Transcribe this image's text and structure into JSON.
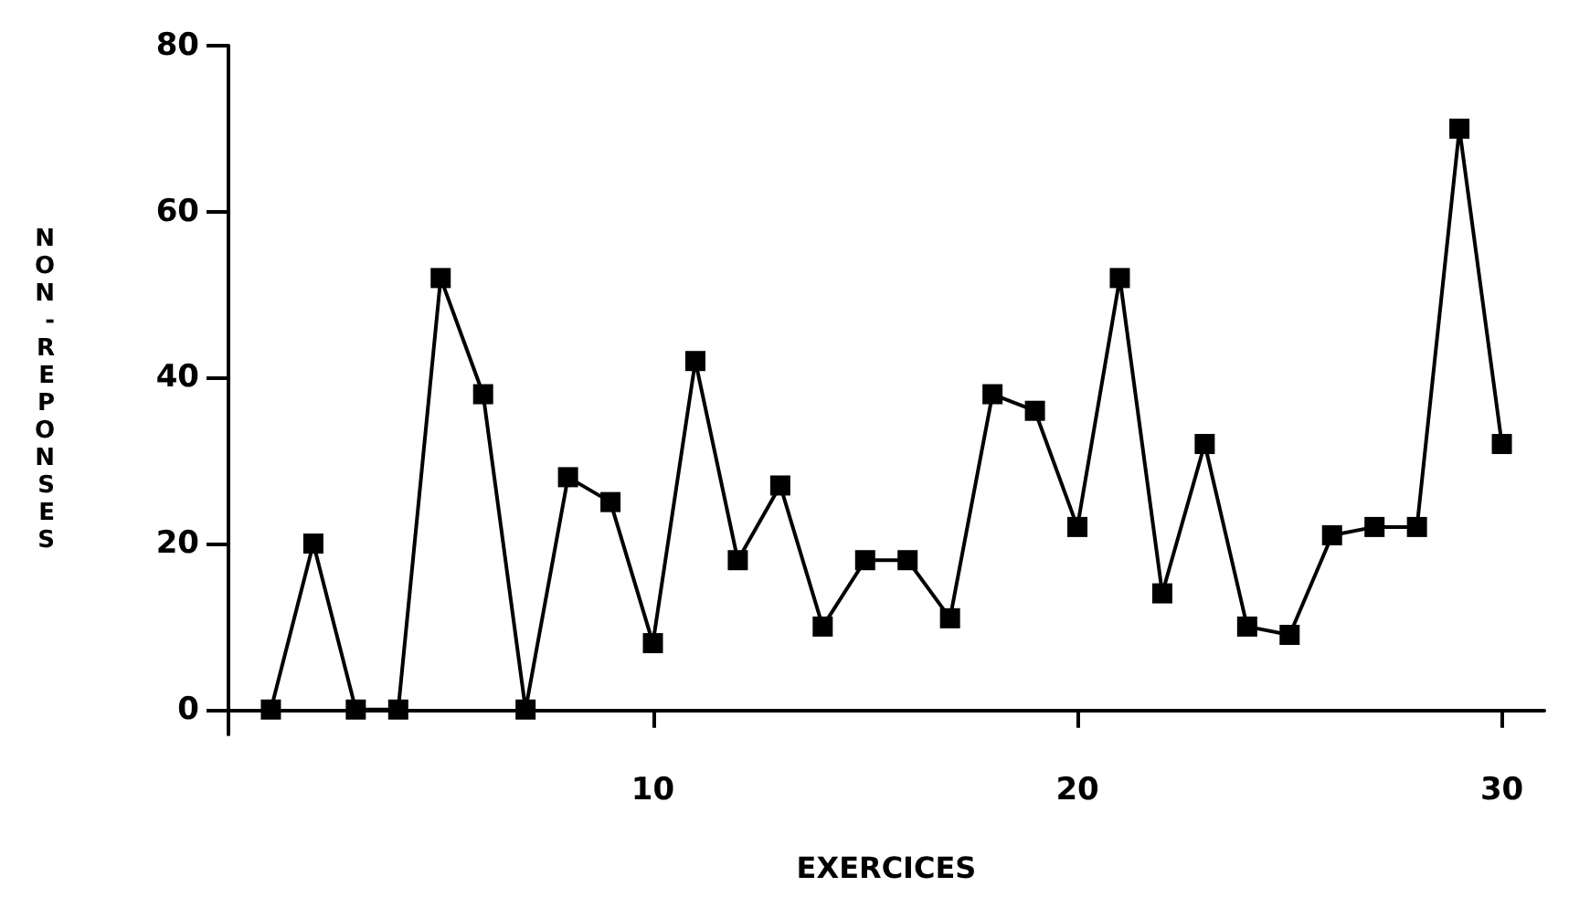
{
  "chart_data": {
    "type": "line",
    "xlabel": "EXERCICES",
    "ylabel": "NON-REPONSES",
    "x": [
      1,
      2,
      3,
      4,
      5,
      6,
      7,
      8,
      9,
      10,
      11,
      12,
      13,
      14,
      15,
      16,
      17,
      18,
      19,
      20,
      21,
      22,
      23,
      24,
      25,
      26,
      27,
      28,
      29,
      30
    ],
    "series": [
      {
        "color": "#000000",
        "values": [
          0,
          20,
          0,
          0,
          52,
          38,
          0,
          28,
          25,
          8,
          42,
          18,
          27,
          10,
          18,
          18,
          11,
          38,
          36,
          22,
          52,
          14,
          32,
          10,
          9,
          21,
          22,
          22,
          70,
          32
        ]
      }
    ],
    "xlim": [
      0,
      31
    ],
    "xticks": [
      10,
      20,
      30
    ],
    "ylim": [
      -3,
      80
    ],
    "yticks": [
      0,
      20,
      40,
      60,
      80
    ],
    "grid": false,
    "marker": "square",
    "line_style": "solid"
  }
}
